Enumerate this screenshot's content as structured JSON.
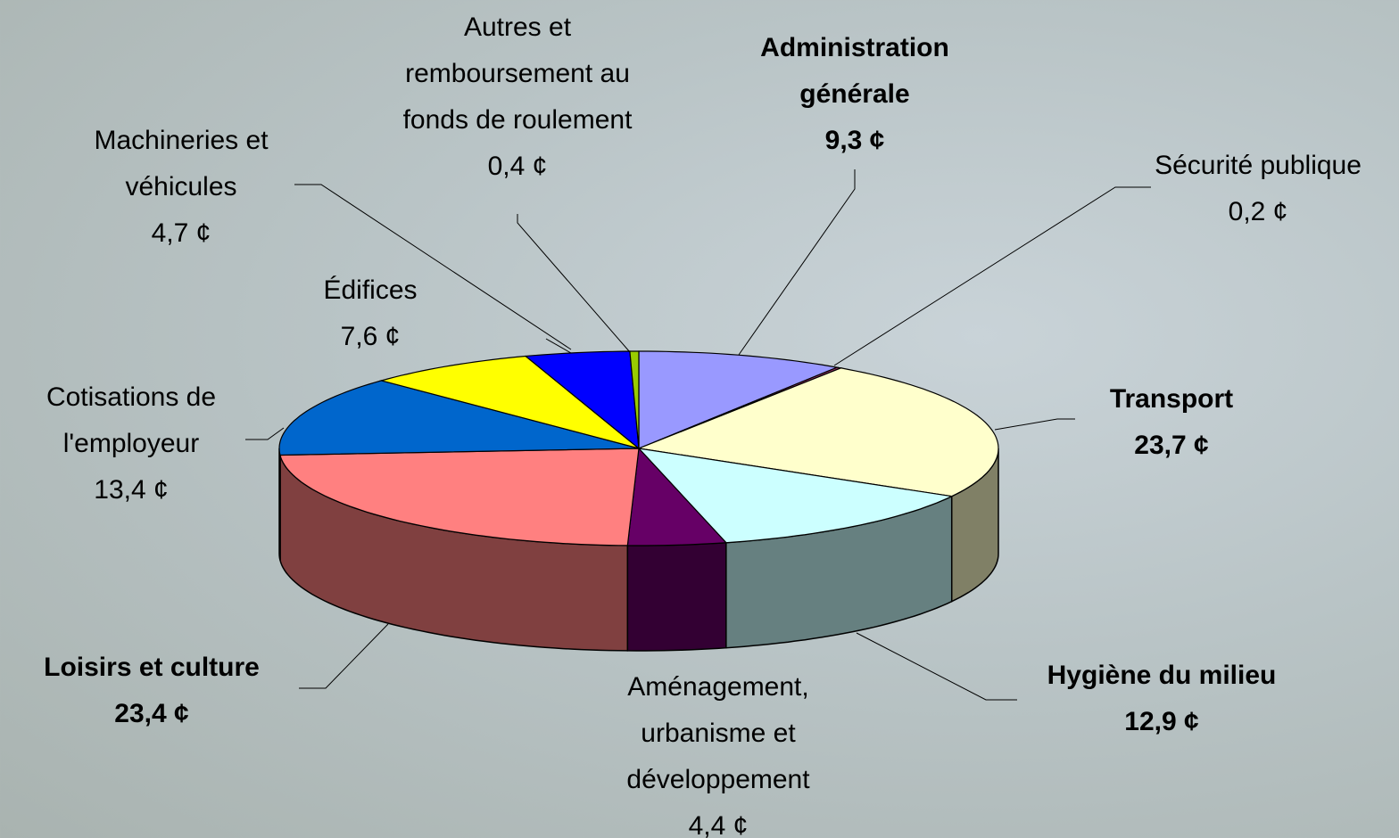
{
  "chart_data": {
    "type": "pie3d",
    "categories": [
      "Administration\ngénérale",
      "Sécurité publique",
      "Transport",
      "Hygiène du milieu",
      "Aménagement,\nurbanisme et\ndéveloppement",
      "Loisirs et culture",
      "Cotisations de\nl'employeur",
      "Édifices",
      "Machineries et\nvéhicules",
      "Autres et\nremboursement au\nfonds de roulement"
    ],
    "values": [
      9.3,
      0.2,
      23.7,
      12.9,
      4.4,
      23.4,
      13.4,
      7.6,
      4.7,
      0.4
    ],
    "value_labels": [
      "9,3 ¢",
      "0,2 ¢",
      "23,7 ¢",
      "12,9 ¢",
      "4,4 ¢",
      "23,4 ¢",
      "13,4 ¢",
      "7,6 ¢",
      "4,7 ¢",
      "0,4 ¢"
    ],
    "colors": [
      "#9999ff",
      "#993366",
      "#ffffcc",
      "#ccffff",
      "#660066",
      "#ff8080",
      "#0066cc",
      "#ffff00",
      "#0000ff",
      "#99cc00"
    ],
    "bold_labels": [
      true,
      false,
      true,
      true,
      false,
      true,
      false,
      false,
      false,
      false
    ]
  }
}
